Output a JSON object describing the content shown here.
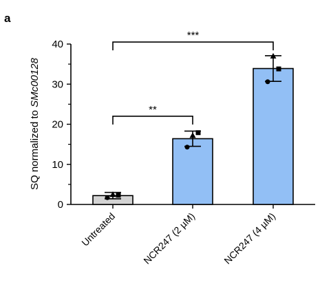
{
  "panel_label": "a",
  "chart_data": {
    "type": "bar",
    "categories": [
      "Untreated",
      "NCR247 (2 µM)",
      "NCR247 (4 µM)"
    ],
    "values": [
      2.2,
      16.4,
      33.9
    ],
    "error": [
      0.8,
      1.9,
      3.2
    ],
    "points": [
      {
        "shape": "circle",
        "values": [
          1.7,
          14.3,
          30.6
        ]
      },
      {
        "shape": "square",
        "values": [
          2.3,
          17.9,
          33.8
        ]
      },
      {
        "shape": "triangle",
        "values": [
          2.5,
          17.2,
          37.0
        ]
      }
    ],
    "bar_colors": [
      "#d3d3d3",
      "#92bff5",
      "#92bff5"
    ],
    "ylabel_prefix": "SQ normalized to ",
    "ylabel_gene": "SMc00128",
    "xlabel": "",
    "title": "",
    "ylim": [
      0,
      40
    ],
    "yticks": [
      0,
      10,
      20,
      30,
      40
    ],
    "grid": false,
    "significance": [
      {
        "from": 0,
        "to": 1,
        "label": "**",
        "level": 22
      },
      {
        "from": 0,
        "to": 2,
        "label": "***",
        "level": 40.5
      }
    ]
  }
}
